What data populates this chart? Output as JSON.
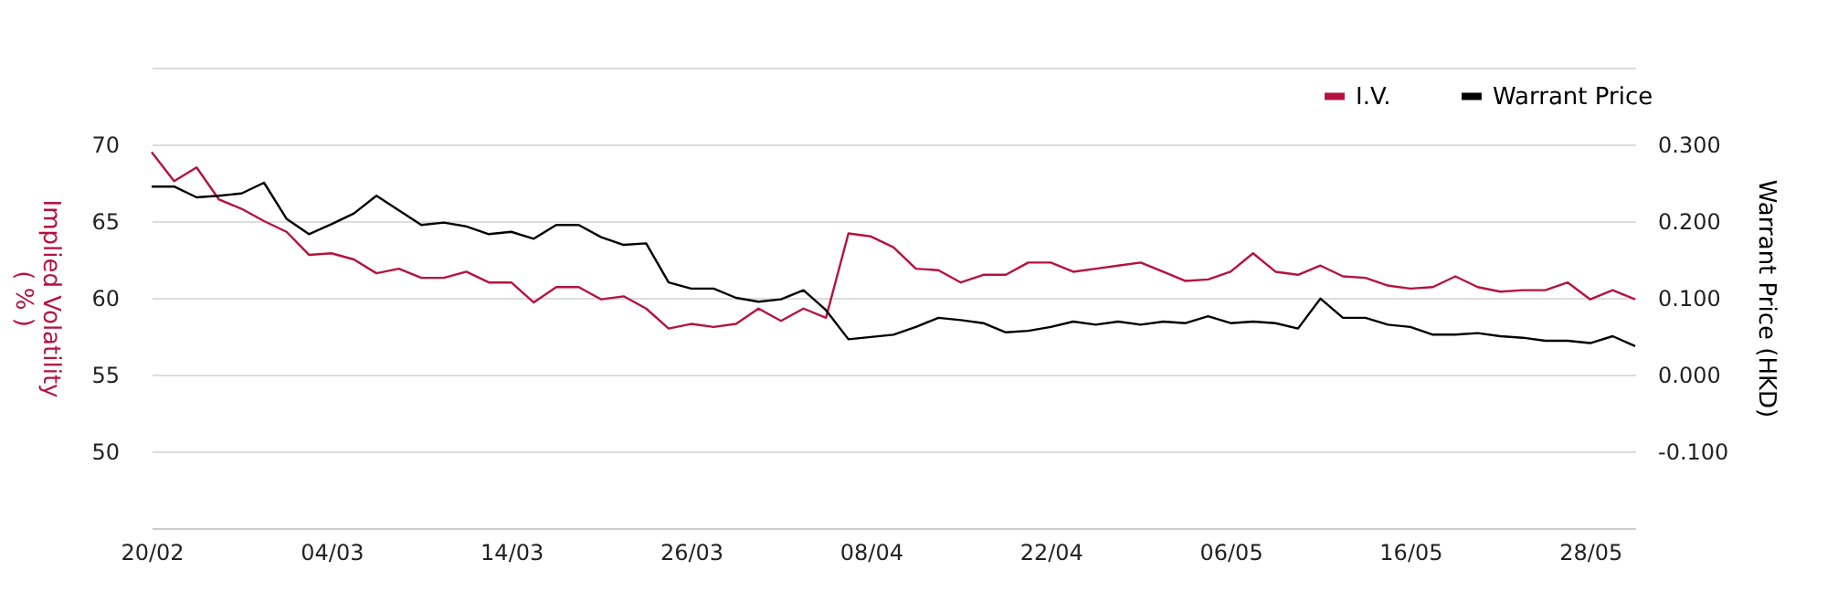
{
  "chart_data": {
    "type": "line",
    "xlabel": null,
    "ylabel": "Implied Volatility\n( % )",
    "y2label": "Warrant Price (HKD)",
    "categories": [
      "20/02",
      null,
      null,
      null,
      null,
      null,
      null,
      null,
      "04/03",
      null,
      null,
      null,
      null,
      null,
      null,
      null,
      "14/03",
      null,
      null,
      null,
      null,
      null,
      null,
      null,
      "26/03",
      null,
      null,
      null,
      null,
      null,
      null,
      null,
      "08/04",
      null,
      null,
      null,
      null,
      null,
      null,
      null,
      "22/04",
      null,
      null,
      null,
      null,
      null,
      null,
      null,
      "06/05",
      null,
      null,
      null,
      null,
      null,
      null,
      null,
      "16/05",
      null,
      null,
      null,
      null,
      null,
      null,
      null,
      "28/05",
      null,
      null
    ],
    "ylim": [
      45,
      75
    ],
    "yticks": [
      {
        "value": 45,
        "label": null
      },
      50,
      55,
      60,
      65,
      70,
      {
        "value": 75,
        "label": null
      }
    ],
    "y2lim": [
      -0.2,
      0.4
    ],
    "y2ticks": [
      {
        "value": -0.2,
        "label": null
      },
      {
        "value": -0.1,
        "label": "-0.100"
      },
      {
        "value": 0,
        "label": "0.000"
      },
      {
        "value": 0.1,
        "label": "0.100"
      },
      {
        "value": 0.2,
        "label": "0.200"
      },
      {
        "value": 0.3,
        "label": "0.300"
      },
      {
        "value": 0.4,
        "label": null
      }
    ],
    "grid": "y",
    "legend": "top right",
    "marker": "none",
    "line_style": "solid",
    "series": [
      {
        "name": "I.V.",
        "color": "#b5123f",
        "values": [
          69.5,
          67.6,
          68.5,
          66.4,
          65.8,
          65.0,
          64.3,
          62.8,
          62.9,
          62.5,
          61.6,
          61.9,
          61.3,
          61.3,
          61.7,
          61.0,
          61.0,
          59.7,
          60.7,
          60.7,
          59.9,
          60.1,
          59.3,
          58.0,
          58.3,
          58.1,
          58.3,
          59.3,
          58.5,
          59.3,
          58.7,
          64.2,
          64.0,
          63.3,
          61.9,
          61.8,
          61.0,
          61.5,
          61.5,
          62.3,
          62.3,
          61.7,
          61.9,
          62.1,
          62.3,
          61.7,
          61.1,
          61.2,
          61.7,
          62.9,
          61.7,
          61.5,
          62.1,
          61.4,
          61.3,
          60.8,
          60.6,
          60.7,
          61.4,
          60.7,
          60.4,
          60.5,
          60.5,
          61.0,
          59.9,
          60.5,
          59.9
        ]
      },
      {
        "name": "Warrant Price",
        "color": "#000000",
        "axis": "y2",
        "values": [
          0.245,
          0.245,
          0.231,
          0.233,
          0.236,
          0.25,
          0.203,
          0.183,
          0.196,
          0.21,
          0.233,
          0.214,
          0.195,
          0.198,
          0.193,
          0.183,
          0.186,
          0.177,
          0.195,
          0.195,
          0.179,
          0.169,
          0.171,
          0.12,
          0.112,
          0.112,
          0.1,
          0.095,
          0.098,
          0.11,
          0.084,
          0.046,
          0.049,
          0.052,
          0.062,
          0.074,
          0.071,
          0.067,
          0.055,
          0.057,
          0.062,
          0.069,
          0.065,
          0.069,
          0.065,
          0.069,
          0.067,
          0.076,
          0.067,
          0.069,
          0.067,
          0.06,
          0.099,
          0.074,
          0.074,
          0.065,
          0.062,
          0.052,
          0.052,
          0.054,
          0.05,
          0.048,
          0.044,
          0.044,
          0.041,
          0.05,
          0.037
        ]
      }
    ]
  }
}
